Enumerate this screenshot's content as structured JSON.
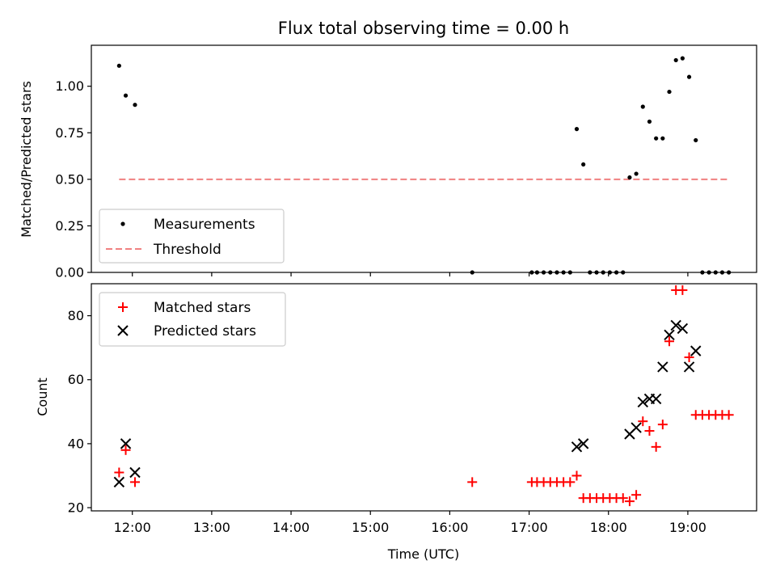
{
  "chart_data": [
    {
      "type": "scatter",
      "title": "Flux total observing time = 0.00 h",
      "xlabel": "",
      "ylabel": "Matched/Predicted stars",
      "ylim": [
        0,
        1.22
      ],
      "yticks": [
        "0.00",
        "0.25",
        "0.50",
        "0.75",
        "1.00"
      ],
      "xlim": [
        "11:29",
        "19:52"
      ],
      "legend": {
        "placement": "lower-left",
        "entries": [
          "Measurements",
          "Threshold"
        ]
      },
      "threshold": {
        "name": "Threshold",
        "value": 0.5,
        "x_range": [
          "11:50",
          "19:30"
        ],
        "color": "#f08080",
        "style": "dashed"
      },
      "series": [
        {
          "name": "Measurements",
          "color": "#000000",
          "marker": "dot",
          "points": [
            [
              "11:50",
              1.11
            ],
            [
              "11:55",
              0.95
            ],
            [
              "12:02",
              0.9
            ],
            [
              "16:17",
              0.0
            ],
            [
              "17:02",
              0.0
            ],
            [
              "17:06",
              0.0
            ],
            [
              "17:11",
              0.0
            ],
            [
              "17:16",
              0.0
            ],
            [
              "17:21",
              0.0
            ],
            [
              "17:26",
              0.0
            ],
            [
              "17:31",
              0.0
            ],
            [
              "17:36",
              0.77
            ],
            [
              "17:41",
              0.58
            ],
            [
              "17:46",
              0.0
            ],
            [
              "17:51",
              0.0
            ],
            [
              "17:56",
              0.0
            ],
            [
              "18:01",
              0.0
            ],
            [
              "18:06",
              0.0
            ],
            [
              "18:11",
              0.0
            ],
            [
              "18:16",
              0.51
            ],
            [
              "18:21",
              0.53
            ],
            [
              "18:26",
              0.89
            ],
            [
              "18:31",
              0.81
            ],
            [
              "18:36",
              0.72
            ],
            [
              "18:41",
              0.72
            ],
            [
              "18:46",
              0.97
            ],
            [
              "18:51",
              1.14
            ],
            [
              "18:56",
              1.15
            ],
            [
              "19:01",
              1.05
            ],
            [
              "19:06",
              0.71
            ],
            [
              "19:11",
              0.0
            ],
            [
              "19:16",
              0.0
            ],
            [
              "19:21",
              0.0
            ],
            [
              "19:26",
              0.0
            ],
            [
              "19:31",
              0.0
            ]
          ]
        }
      ]
    },
    {
      "type": "scatter",
      "title": "",
      "xlabel": "Time (UTC)",
      "ylabel": "Count",
      "ylim": [
        19,
        90
      ],
      "yticks": [
        "20",
        "40",
        "60",
        "80"
      ],
      "xlim": [
        "11:29",
        "19:52"
      ],
      "xticks": [
        "12:00",
        "13:00",
        "14:00",
        "15:00",
        "16:00",
        "17:00",
        "18:00",
        "19:00"
      ],
      "legend": {
        "placement": "upper-left",
        "entries": [
          "Matched stars",
          "Predicted stars"
        ]
      },
      "series": [
        {
          "name": "Matched stars",
          "color": "#ff0000",
          "marker": "plus",
          "points": [
            [
              "11:50",
              31
            ],
            [
              "11:55",
              38
            ],
            [
              "12:02",
              28
            ],
            [
              "16:17",
              28
            ],
            [
              "17:02",
              28
            ],
            [
              "17:06",
              28
            ],
            [
              "17:11",
              28
            ],
            [
              "17:16",
              28
            ],
            [
              "17:21",
              28
            ],
            [
              "17:26",
              28
            ],
            [
              "17:31",
              28
            ],
            [
              "17:36",
              30
            ],
            [
              "17:41",
              23
            ],
            [
              "17:46",
              23
            ],
            [
              "17:51",
              23
            ],
            [
              "17:56",
              23
            ],
            [
              "18:01",
              23
            ],
            [
              "18:06",
              23
            ],
            [
              "18:11",
              23
            ],
            [
              "18:16",
              22
            ],
            [
              "18:21",
              24
            ],
            [
              "18:26",
              47
            ],
            [
              "18:31",
              44
            ],
            [
              "18:36",
              39
            ],
            [
              "18:41",
              46
            ],
            [
              "18:46",
              72
            ],
            [
              "18:51",
              88
            ],
            [
              "18:56",
              88
            ],
            [
              "19:01",
              67
            ],
            [
              "19:06",
              49
            ],
            [
              "19:11",
              49
            ],
            [
              "19:16",
              49
            ],
            [
              "19:21",
              49
            ],
            [
              "19:26",
              49
            ],
            [
              "19:31",
              49
            ]
          ]
        },
        {
          "name": "Predicted stars",
          "color": "#000000",
          "marker": "x",
          "points": [
            [
              "11:50",
              28
            ],
            [
              "11:55",
              40
            ],
            [
              "12:02",
              31
            ],
            [
              "17:36",
              39
            ],
            [
              "17:41",
              40
            ],
            [
              "18:16",
              43
            ],
            [
              "18:21",
              45
            ],
            [
              "18:26",
              53
            ],
            [
              "18:31",
              54
            ],
            [
              "18:36",
              54
            ],
            [
              "18:41",
              64
            ],
            [
              "18:46",
              74
            ],
            [
              "18:51",
              77
            ],
            [
              "18:56",
              76
            ],
            [
              "19:01",
              64
            ],
            [
              "19:06",
              69
            ]
          ]
        }
      ]
    }
  ]
}
